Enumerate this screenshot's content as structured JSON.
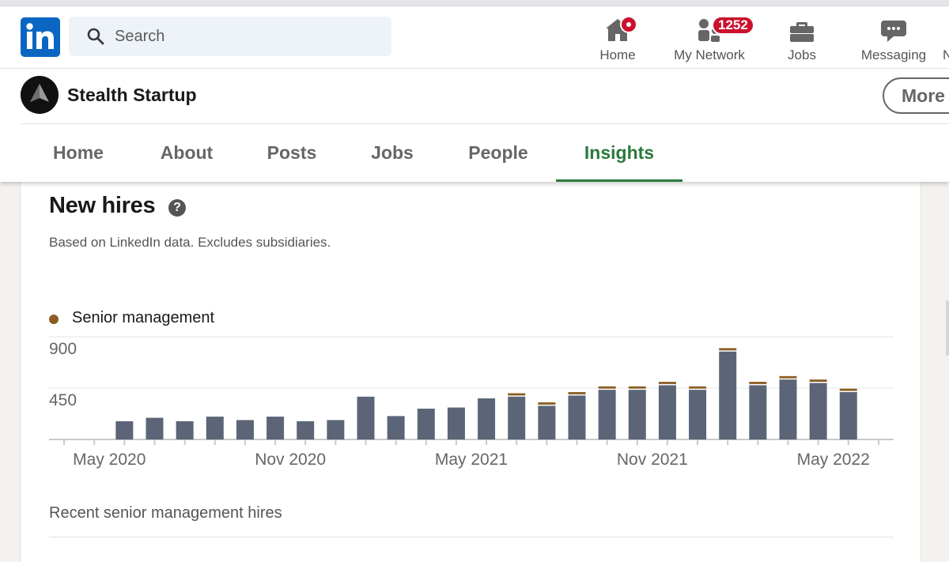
{
  "search": {
    "placeholder": "Search"
  },
  "nav": {
    "items": [
      {
        "label": "Home",
        "icon": "home-icon"
      },
      {
        "label": "My Network",
        "icon": "my-network-icon",
        "badge": "1252"
      },
      {
        "label": "Jobs",
        "icon": "briefcase-icon"
      },
      {
        "label": "Messaging",
        "icon": "messaging-icon"
      }
    ],
    "cut_label": "N"
  },
  "company": {
    "name": "Stealth Startup",
    "more_label": "More",
    "tabs": [
      "Home",
      "About",
      "Posts",
      "Jobs",
      "People",
      "Insights"
    ],
    "active_tab": "Insights"
  },
  "insights": {
    "title": "New hires",
    "subtitle": "Based on LinkedIn data. Excludes subsidiaries.",
    "recent_label": "Recent senior management hires"
  },
  "colors": {
    "accent_green": "#2b7a3d",
    "linkedin_blue": "#0a66c2",
    "bar_other": "#5b6577",
    "bar_senior": "#8b5d22",
    "badge_red": "#cb112d"
  },
  "chart_data": {
    "type": "bar",
    "stacked": true,
    "legend": {
      "position": "top-left",
      "entries": [
        "Senior management"
      ]
    },
    "ylim": [
      0,
      900
    ],
    "yticks": [
      450,
      900
    ],
    "xtick_labels": [
      "May 2020",
      "Nov 2020",
      "May 2021",
      "Nov 2021",
      "May 2022"
    ],
    "xtick_label_positions": [
      1.5,
      7.5,
      13.5,
      19.5,
      25.5
    ],
    "grid": true,
    "categories": [
      "Mar 2020",
      "Apr 2020",
      "May 2020",
      "Jun 2020",
      "Jul 2020",
      "Aug 2020",
      "Sep 2020",
      "Oct 2020",
      "Nov 2020",
      "Dec 2020",
      "Jan 2021",
      "Feb 2021",
      "Mar 2021",
      "Apr 2021",
      "May 2021",
      "Jun 2021",
      "Jul 2021",
      "Aug 2021",
      "Sep 2021",
      "Oct 2021",
      "Nov 2021",
      "Dec 2021",
      "Jan 2022",
      "Feb 2022",
      "Mar 2022",
      "Apr 2022",
      "May 2022",
      "Jun 2022"
    ],
    "series": [
      {
        "name": "",
        "values": [
          0,
          0,
          160,
          190,
          160,
          200,
          170,
          200,
          160,
          170,
          375,
          205,
          270,
          280,
          360,
          375,
          295,
          385,
          435,
          435,
          475,
          435,
          770,
          475,
          525,
          495,
          415,
          0
        ]
      },
      {
        "name": "Senior management",
        "values": [
          0,
          0,
          0,
          0,
          0,
          0,
          0,
          0,
          0,
          0,
          0,
          0,
          0,
          0,
          0,
          30,
          30,
          30,
          30,
          30,
          30,
          30,
          30,
          30,
          30,
          30,
          30,
          0
        ]
      }
    ]
  }
}
